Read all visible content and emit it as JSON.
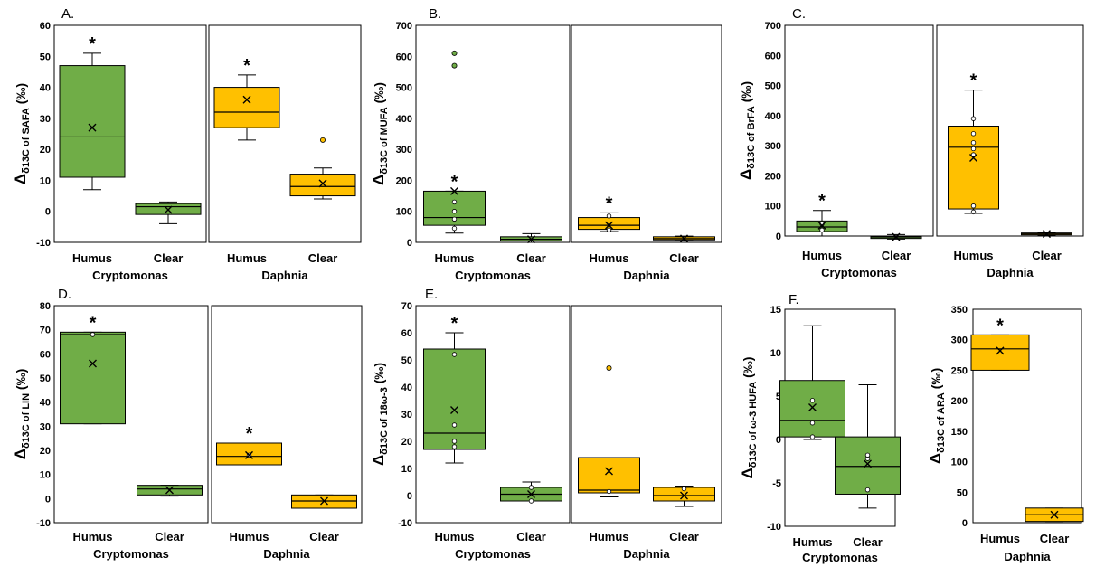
{
  "colors": {
    "humus_green": "#70ad47",
    "daphnia_orange": "#ffc000",
    "stroke": "#000000"
  },
  "chart_data": [
    {
      "type": "box",
      "label": "A.",
      "ylabel_main": "Δ",
      "ylabel_sub": "δ13C of SAFA",
      "ylabel_unit": " (‰)",
      "ylim": [
        -10,
        60
      ],
      "yticks": [
        -10,
        0,
        10,
        20,
        30,
        40,
        50,
        60
      ],
      "groups": [
        {
          "name": "Cryptomonas",
          "color": "green",
          "boxes": [
            {
              "category": "Humus",
              "min": 7,
              "q1": 11,
              "median": 24,
              "q3": 47,
              "max": 51,
              "mean": 27,
              "outliers": [],
              "points": [],
              "star": true
            },
            {
              "category": "Clear",
              "min": -4,
              "q1": -1,
              "median": 1.5,
              "q3": 2.5,
              "max": 3,
              "mean": 0.5,
              "outliers": [],
              "points": [],
              "star": false
            }
          ]
        },
        {
          "name": "Daphnia",
          "color": "orange",
          "boxes": [
            {
              "category": "Humus",
              "min": 23,
              "q1": 27,
              "median": 32,
              "q3": 40,
              "max": 44,
              "mean": 36,
              "outliers": [],
              "points": [],
              "star": true
            },
            {
              "category": "Clear",
              "min": 4,
              "q1": 5,
              "median": 8,
              "q3": 12,
              "max": 14,
              "mean": 9,
              "outliers": [
                23
              ],
              "points": [],
              "star": false
            }
          ]
        }
      ]
    },
    {
      "type": "box",
      "label": "B.",
      "ylabel_main": "Δ",
      "ylabel_sub": "δ13C of MUFA",
      "ylabel_unit": " (‰)",
      "ylim": [
        0,
        700
      ],
      "yticks": [
        0,
        100,
        200,
        300,
        400,
        500,
        600,
        700
      ],
      "groups": [
        {
          "name": "Cryptomonas",
          "color": "green",
          "boxes": [
            {
              "category": "Humus",
              "min": 30,
              "q1": 55,
              "median": 80,
              "q3": 165,
              "max": 165,
              "mean": 165,
              "outliers": [
                570,
                610
              ],
              "points": [
                45,
                75,
                100,
                130
              ],
              "star": true
            },
            {
              "category": "Clear",
              "min": 0,
              "q1": 5,
              "median": 10,
              "q3": 18,
              "max": 28,
              "mean": 10,
              "outliers": [],
              "points": [],
              "star": false
            }
          ]
        },
        {
          "name": "Daphnia",
          "color": "orange",
          "boxes": [
            {
              "category": "Humus",
              "min": 35,
              "q1": 42,
              "median": 55,
              "q3": 80,
              "max": 95,
              "mean": 55,
              "outliers": [],
              "points": [
                40,
                85
              ],
              "star": true
            },
            {
              "category": "Clear",
              "min": 5,
              "q1": 8,
              "median": 12,
              "q3": 18,
              "max": 20,
              "mean": 12,
              "outliers": [],
              "points": [],
              "star": false
            }
          ]
        }
      ]
    },
    {
      "type": "box",
      "label": "C.",
      "ylabel_main": "Δ",
      "ylabel_sub": "δ13C of BrFA",
      "ylabel_unit": " (‰)",
      "ylim": [
        0,
        700
      ],
      "yticks": [
        0,
        100,
        200,
        300,
        400,
        500,
        600,
        700
      ],
      "groups": [
        {
          "name": "Cryptomonas",
          "color": "green",
          "boxes": [
            {
              "category": "Humus",
              "min": 0,
              "q1": 15,
              "median": 30,
              "q3": 50,
              "max": 85,
              "mean": 35,
              "outliers": [],
              "points": [
                20,
                40
              ],
              "star": true
            },
            {
              "category": "Clear",
              "min": -10,
              "q1": -8,
              "median": -3,
              "q3": 0,
              "max": 5,
              "mean": -3,
              "outliers": [],
              "points": [],
              "star": false
            }
          ]
        },
        {
          "name": "Daphnia",
          "color": "orange",
          "boxes": [
            {
              "category": "Humus",
              "min": 75,
              "q1": 90,
              "median": 295,
              "q3": 365,
              "max": 485,
              "mean": 260,
              "outliers": [],
              "points": [
                80,
                100,
                270,
                290,
                310,
                340,
                390
              ],
              "star": true
            },
            {
              "category": "Clear",
              "min": 2,
              "q1": 4,
              "median": 7,
              "q3": 10,
              "max": 12,
              "mean": 7,
              "outliers": [],
              "points": [],
              "star": false
            }
          ]
        }
      ]
    },
    {
      "type": "box",
      "label": "D.",
      "ylabel_main": "Δ",
      "ylabel_sub": "δ13C of LIN",
      "ylabel_unit": " (‰)",
      "ylim": [
        -10,
        80
      ],
      "yticks": [
        -10,
        0,
        10,
        20,
        30,
        40,
        50,
        60,
        70,
        80
      ],
      "groups": [
        {
          "name": "Cryptomonas",
          "color": "green",
          "boxes": [
            {
              "category": "Humus",
              "min": 31,
              "q1": 31,
              "median": 68,
              "q3": 69,
              "max": 69,
              "mean": 56,
              "outliers": [],
              "points": [
                68
              ],
              "star": true
            },
            {
              "category": "Clear",
              "min": 1,
              "q1": 1.5,
              "median": 4,
              "q3": 5.5,
              "max": 5.5,
              "mean": 3.5,
              "outliers": [],
              "points": [],
              "star": false
            }
          ]
        },
        {
          "name": "Daphnia",
          "color": "orange",
          "boxes": [
            {
              "category": "Humus",
              "min": 14,
              "q1": 14,
              "median": 17.5,
              "q3": 23,
              "max": 23,
              "mean": 18,
              "outliers": [],
              "points": [
                18
              ],
              "star": true
            },
            {
              "category": "Clear",
              "min": -4,
              "q1": -4,
              "median": -1,
              "q3": 1.5,
              "max": 1.5,
              "mean": -1,
              "outliers": [],
              "points": [],
              "star": false
            }
          ]
        }
      ]
    },
    {
      "type": "box",
      "label": "E.",
      "ylabel_main": "Δ",
      "ylabel_sub": "δ13C of 18ω-3",
      "ylabel_unit": " (‰)",
      "ylim": [
        -10,
        70
      ],
      "yticks": [
        -10,
        0,
        10,
        20,
        30,
        40,
        50,
        60,
        70
      ],
      "groups": [
        {
          "name": "Cryptomonas",
          "color": "green",
          "boxes": [
            {
              "category": "Humus",
              "min": 12,
              "q1": 17,
              "median": 23,
              "q3": 54,
              "max": 60,
              "mean": 31.5,
              "outliers": [],
              "points": [
                18,
                20,
                26,
                52
              ],
              "star": true
            },
            {
              "category": "Clear",
              "min": -2,
              "q1": -2,
              "median": 0.5,
              "q3": 3,
              "max": 5,
              "mean": 0.5,
              "outliers": [],
              "points": [
                -2,
                3
              ],
              "star": false
            }
          ]
        },
        {
          "name": "Daphnia",
          "color": "orange",
          "boxes": [
            {
              "category": "Humus",
              "min": -0.5,
              "q1": 1,
              "median": 2,
              "q3": 14,
              "max": 14,
              "mean": 9,
              "outliers": [
                47
              ],
              "points": [
                1.5
              ],
              "star": false
            },
            {
              "category": "Clear",
              "min": -4,
              "q1": -2,
              "median": 0,
              "q3": 3,
              "max": 3.5,
              "mean": 0,
              "outliers": [],
              "points": [
                2.5
              ],
              "star": false
            }
          ]
        }
      ]
    },
    {
      "type": "box",
      "label": "F.",
      "ylabel_main": "Δ",
      "ylabel_sub": "δ13C of ω-3 HUFA",
      "ylabel_unit": " (‰)",
      "ylim": [
        -10,
        15
      ],
      "yticks": [
        -10,
        -5,
        0,
        5,
        10,
        15
      ],
      "groups": [
        {
          "name": "Cryptomonas",
          "color": "green",
          "boxes": [
            {
              "category": "Humus",
              "min": 0,
              "q1": 0.3,
              "median": 2.2,
              "q3": 6.8,
              "max": 13.1,
              "mean": 3.7,
              "outliers": [],
              "points": [
                0.3,
                1.9,
                4.5
              ],
              "star": false
            },
            {
              "category": "Clear",
              "min": -7.9,
              "q1": -6.3,
              "median": -3.1,
              "q3": 0.3,
              "max": 6.3,
              "mean": -2.8,
              "outliers": [],
              "points": [
                -5.8,
                -2.2,
                -1.8
              ],
              "star": false
            }
          ]
        }
      ]
    },
    {
      "type": "box",
      "label": "",
      "ylabel_main": "Δ",
      "ylabel_sub": "δ13C of ARA",
      "ylabel_unit": " (‰)",
      "ylim": [
        0,
        350
      ],
      "yticks": [
        0,
        50,
        100,
        150,
        200,
        250,
        300,
        350
      ],
      "groups": [
        {
          "name": "Daphnia",
          "color": "orange",
          "boxes": [
            {
              "category": "Humus",
              "min": 250,
              "q1": 250,
              "median": 285,
              "q3": 308,
              "max": 308,
              "mean": 282,
              "outliers": [],
              "points": [],
              "star": true
            },
            {
              "category": "Clear",
              "min": 2,
              "q1": 2,
              "median": 13,
              "q3": 24,
              "max": 24,
              "mean": 13,
              "outliers": [],
              "points": [],
              "star": false
            }
          ]
        }
      ]
    }
  ]
}
